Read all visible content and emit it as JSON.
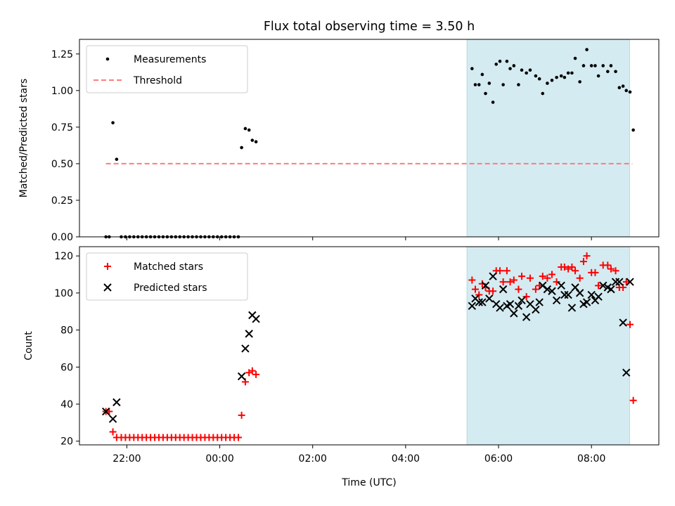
{
  "figure": {
    "title": "Flux total observing time = 3.50 h",
    "xlabel": "Time (UTC)",
    "xticks": [
      {
        "t": 22,
        "label": "22:00"
      },
      {
        "t": 24,
        "label": "00:00"
      },
      {
        "t": 26,
        "label": "02:00"
      },
      {
        "t": 28,
        "label": "04:00"
      },
      {
        "t": 30,
        "label": "06:00"
      },
      {
        "t": 32,
        "label": "08:00"
      }
    ],
    "xlim": [
      20.98,
      33.45
    ],
    "shaded_span": {
      "start": 29.32,
      "end": 32.82,
      "color": "#d4ebf1"
    }
  },
  "chart_data": [
    {
      "type": "scatter",
      "ylabel": "Matched/Predicted stars",
      "ylim": [
        0,
        1.35
      ],
      "yticks": [
        "0.00",
        "0.25",
        "0.50",
        "0.75",
        "1.00",
        "1.25"
      ],
      "legend_position": "top-left",
      "legend": [
        "Measurements",
        "Threshold"
      ],
      "threshold": {
        "y": 0.5,
        "x_range": [
          21.55,
          32.88
        ],
        "color": "#ff7b7b",
        "style": "dashed"
      },
      "series": [
        {
          "name": "Measurements",
          "marker": "dot",
          "color": "#000000",
          "x": [
            21.55,
            21.62,
            21.7,
            21.78,
            21.88,
            21.97,
            22.06,
            22.15,
            22.24,
            22.33,
            22.42,
            22.51,
            22.6,
            22.69,
            22.78,
            22.87,
            22.96,
            23.05,
            23.14,
            23.23,
            23.32,
            23.41,
            23.5,
            23.59,
            23.68,
            23.77,
            23.86,
            23.95,
            24.04,
            24.13,
            24.22,
            24.31,
            24.4,
            24.47,
            24.55,
            24.63,
            24.7,
            24.78,
            29.43,
            29.5,
            29.58,
            29.65,
            29.72,
            29.8,
            29.88,
            29.95,
            30.03,
            30.1,
            30.18,
            30.25,
            30.33,
            30.43,
            30.5,
            30.6,
            30.68,
            30.8,
            30.88,
            30.95,
            31.05,
            31.15,
            31.25,
            31.35,
            31.42,
            31.5,
            31.58,
            31.65,
            31.75,
            31.83,
            31.9,
            32.0,
            32.08,
            32.15,
            32.25,
            32.35,
            32.42,
            32.52,
            32.6,
            32.68,
            32.75,
            32.83,
            32.9
          ],
          "y": [
            0.0,
            0.0,
            0.78,
            0.53,
            0.0,
            0.0,
            0.0,
            0.0,
            0.0,
            0.0,
            0.0,
            0.0,
            0.0,
            0.0,
            0.0,
            0.0,
            0.0,
            0.0,
            0.0,
            0.0,
            0.0,
            0.0,
            0.0,
            0.0,
            0.0,
            0.0,
            0.0,
            0.0,
            0.0,
            0.0,
            0.0,
            0.0,
            0.0,
            0.61,
            0.74,
            0.73,
            0.66,
            0.65,
            1.15,
            1.04,
            1.04,
            1.11,
            0.98,
            1.05,
            0.92,
            1.18,
            1.2,
            1.04,
            1.2,
            1.15,
            1.17,
            1.04,
            1.14,
            1.12,
            1.14,
            1.1,
            1.08,
            0.98,
            1.05,
            1.07,
            1.09,
            1.1,
            1.09,
            1.12,
            1.12,
            1.22,
            1.06,
            1.17,
            1.28,
            1.17,
            1.17,
            1.1,
            1.17,
            1.13,
            1.17,
            1.13,
            1.02,
            1.03,
            1.0,
            0.99,
            0.73
          ]
        }
      ]
    },
    {
      "type": "scatter",
      "ylabel": "Count",
      "ylim": [
        18,
        125
      ],
      "yticks": [
        "20",
        "40",
        "60",
        "80",
        "100",
        "120"
      ],
      "legend_position": "top-left",
      "legend": [
        "Matched stars",
        "Predicted stars"
      ],
      "series": [
        {
          "name": "Matched stars",
          "marker": "plus",
          "color": "#ff0000",
          "x": [
            21.55,
            21.62,
            21.7,
            21.78,
            21.88,
            21.97,
            22.06,
            22.15,
            22.24,
            22.33,
            22.42,
            22.51,
            22.6,
            22.69,
            22.78,
            22.87,
            22.96,
            23.05,
            23.14,
            23.23,
            23.32,
            23.41,
            23.5,
            23.59,
            23.68,
            23.77,
            23.86,
            23.95,
            24.04,
            24.13,
            24.22,
            24.31,
            24.4,
            24.47,
            24.55,
            24.63,
            24.7,
            24.78,
            29.43,
            29.5,
            29.58,
            29.65,
            29.72,
            29.8,
            29.88,
            29.95,
            30.03,
            30.1,
            30.18,
            30.25,
            30.33,
            30.43,
            30.5,
            30.6,
            30.68,
            30.8,
            30.88,
            30.95,
            31.05,
            31.15,
            31.25,
            31.35,
            31.42,
            31.5,
            31.58,
            31.65,
            31.75,
            31.83,
            31.9,
            32.0,
            32.08,
            32.15,
            32.25,
            32.35,
            32.42,
            32.52,
            32.6,
            32.68,
            32.75,
            32.83,
            32.9
          ],
          "y": [
            36,
            36,
            25,
            22,
            22,
            22,
            22,
            22,
            22,
            22,
            22,
            22,
            22,
            22,
            22,
            22,
            22,
            22,
            22,
            22,
            22,
            22,
            22,
            22,
            22,
            22,
            22,
            22,
            22,
            22,
            22,
            22,
            22,
            34,
            52,
            57,
            58,
            56,
            107,
            102,
            99,
            105,
            103,
            101,
            101,
            112,
            112,
            106,
            112,
            106,
            107,
            102,
            109,
            98,
            108,
            102,
            104,
            109,
            108,
            110,
            106,
            114,
            114,
            113,
            114,
            112,
            108,
            117,
            120,
            111,
            111,
            104,
            115,
            115,
            113,
            112,
            103,
            103,
            106,
            83,
            42
          ]
        },
        {
          "name": "Predicted stars",
          "marker": "x",
          "color": "#000000",
          "x": [
            21.55,
            21.7,
            21.78,
            24.47,
            24.55,
            24.63,
            24.7,
            24.78,
            29.43,
            29.5,
            29.58,
            29.65,
            29.72,
            29.8,
            29.88,
            29.95,
            30.03,
            30.1,
            30.18,
            30.25,
            30.33,
            30.43,
            30.5,
            30.6,
            30.68,
            30.8,
            30.88,
            30.95,
            31.05,
            31.15,
            31.25,
            31.35,
            31.42,
            31.5,
            31.58,
            31.65,
            31.75,
            31.83,
            31.9,
            32.0,
            32.08,
            32.15,
            32.25,
            32.35,
            32.42,
            32.52,
            32.6,
            32.68,
            32.75,
            32.83
          ],
          "y": [
            36,
            32,
            41,
            55,
            70,
            78,
            88,
            86,
            93,
            97,
            95,
            95,
            104,
            97,
            109,
            94,
            92,
            102,
            93,
            94,
            89,
            93,
            96,
            87,
            94,
            91,
            95,
            104,
            102,
            101,
            96,
            104,
            99,
            99,
            92,
            103,
            100,
            94,
            95,
            99,
            96,
            98,
            104,
            103,
            102,
            106,
            106,
            84,
            57,
            106
          ]
        }
      ]
    }
  ]
}
